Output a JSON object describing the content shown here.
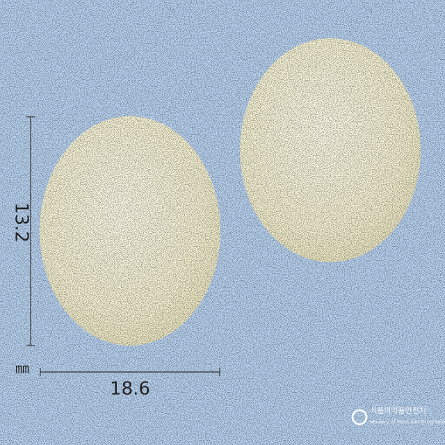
{
  "dimensions": {
    "height": "13.2",
    "width": "18.6",
    "unit": "㎜"
  },
  "watermark": {
    "name_ko": "식품의약품안전처",
    "name_en": "Ministry of Food and Drug Safety"
  }
}
